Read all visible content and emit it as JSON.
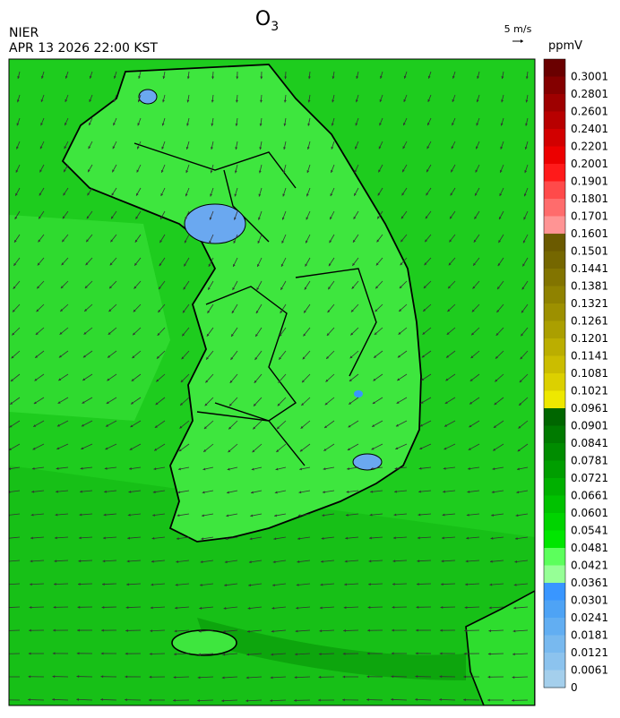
{
  "header": {
    "title": "O",
    "title_subscript": "3",
    "agency": "NIER",
    "timestamp": "APR 13 2026 22:00 KST",
    "wind_scale": "5 m/s"
  },
  "legend": {
    "unit": "ppmV",
    "items": [
      {
        "label": "0.3001",
        "color": "#6a0000"
      },
      {
        "label": "0.2801",
        "color": "#840000"
      },
      {
        "label": "0.2601",
        "color": "#9e0000"
      },
      {
        "label": "0.2401",
        "color": "#b80000"
      },
      {
        "label": "0.2201",
        "color": "#d20000"
      },
      {
        "label": "0.2001",
        "color": "#ec0000"
      },
      {
        "label": "0.1901",
        "color": "#ff1a1a"
      },
      {
        "label": "0.1801",
        "color": "#ff4a4a"
      },
      {
        "label": "0.1701",
        "color": "#ff6c6c"
      },
      {
        "label": "0.1601",
        "color": "#ff9494"
      },
      {
        "label": "0.1501",
        "color": "#6b5a00"
      },
      {
        "label": "0.1441",
        "color": "#756700"
      },
      {
        "label": "0.1381",
        "color": "#827400"
      },
      {
        "label": "0.1321",
        "color": "#8f8200"
      },
      {
        "label": "0.1261",
        "color": "#9d9000"
      },
      {
        "label": "0.1201",
        "color": "#ab9f00"
      },
      {
        "label": "0.1141",
        "color": "#bbae00"
      },
      {
        "label": "0.1081",
        "color": "#cbbd00"
      },
      {
        "label": "0.1021",
        "color": "#dcd000"
      },
      {
        "label": "0.0961",
        "color": "#eee800"
      },
      {
        "label": "0.0901",
        "color": "#006600"
      },
      {
        "label": "0.0841",
        "color": "#007a00"
      },
      {
        "label": "0.0781",
        "color": "#008c00"
      },
      {
        "label": "0.0721",
        "color": "#009e00"
      },
      {
        "label": "0.0661",
        "color": "#00b000"
      },
      {
        "label": "0.0601",
        "color": "#00c200"
      },
      {
        "label": "0.0541",
        "color": "#00d400"
      },
      {
        "label": "0.0481",
        "color": "#00e600"
      },
      {
        "label": "0.0421",
        "color": "#5cff5c"
      },
      {
        "label": "0.0361",
        "color": "#96ff96"
      },
      {
        "label": "0.0301",
        "color": "#3996ff"
      },
      {
        "label": "0.0241",
        "color": "#4ea3f5"
      },
      {
        "label": "0.0181",
        "color": "#62aef2"
      },
      {
        "label": "0.0121",
        "color": "#78b9ef"
      },
      {
        "label": "0.0061",
        "color": "#8cc3ee"
      },
      {
        "label": "0",
        "color": "#a4cfec"
      }
    ]
  }
}
